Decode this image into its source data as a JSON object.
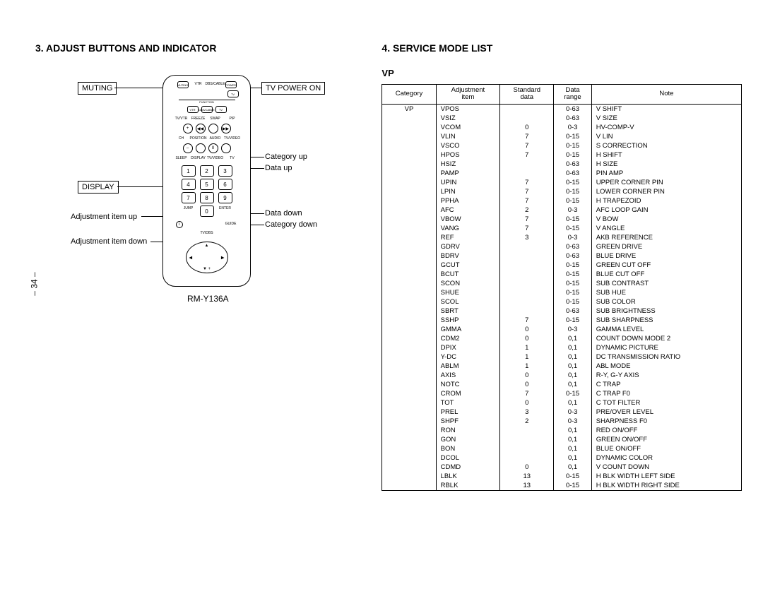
{
  "pageNumber": "– 34 –",
  "left": {
    "heading": "3. ADJUST BUTTONS AND INDICATOR",
    "remoteModel": "RM-Y136A",
    "labels": {
      "muting": "MUTING",
      "tvPowerOn": "TV POWER ON",
      "display": "DISPLAY",
      "adjItemUp": "Adjustment item up",
      "adjItemDown": "Adjustment item down",
      "categoryUp": "Category up",
      "dataUp": "Data up",
      "dataDown": "Data down",
      "categoryDown": "Category down"
    },
    "remoteButtons": {
      "topRow": [
        "MUTING",
        "VTR",
        "DBS/CABLE",
        "POWER"
      ],
      "tv": "TV",
      "function": "FUNCTION",
      "funcRow": [
        "VTR",
        "DBS/CABLE",
        "TV"
      ],
      "midRow1": [
        "TV/VTR",
        "FREEZE",
        "SWAP",
        "PIP"
      ],
      "midRow2": [
        "CH",
        "POSITION",
        "AUDIO",
        "TV/VIDEO"
      ],
      "midRow3": [
        "SLEEP",
        "DISPLAY",
        "TV/VIDEO",
        "TV"
      ],
      "midSymbols1": [
        "+",
        "◀◀",
        "",
        "▶▶"
      ],
      "midSymbols2": [
        "–",
        "◀◀",
        "II",
        ""
      ],
      "keypad": [
        [
          "1",
          "2",
          "3"
        ],
        [
          "4",
          "5",
          "6"
        ],
        [
          "7",
          "8",
          "9"
        ],
        [
          "",
          "0",
          ""
        ]
      ],
      "jump": "JUMP",
      "enter": "ENTER",
      "guide": "GUIDE",
      "tvdbs": "TV/DBS",
      "info": "i"
    }
  },
  "right": {
    "heading": "4. SERVICE MODE LIST",
    "subheading": "VP",
    "columns": [
      "Category",
      "Adjustment\nitem",
      "Standard\ndata",
      "Data\nrange",
      "Note"
    ],
    "category": "VP",
    "rows": [
      {
        "item": "VPOS",
        "std": "",
        "range": "0-63",
        "note": "V SHIFT"
      },
      {
        "item": "VSIZ",
        "std": "",
        "range": "0-63",
        "note": "V SIZE"
      },
      {
        "item": "VCOM",
        "std": "0",
        "range": "0-3",
        "note": "HV-COMP-V"
      },
      {
        "item": "VLIN",
        "std": "7",
        "range": "0-15",
        "note": "V LIN"
      },
      {
        "item": "VSCO",
        "std": "7",
        "range": "0-15",
        "note": "S CORRECTION"
      },
      {
        "item": "HPOS",
        "std": "7",
        "range": "0-15",
        "note": "H SHIFT"
      },
      {
        "item": "HSIZ",
        "std": "",
        "range": "0-63",
        "note": "H SIZE"
      },
      {
        "item": "PAMP",
        "std": "",
        "range": "0-63",
        "note": "PIN AMP"
      },
      {
        "item": "UPIN",
        "std": "7",
        "range": "0-15",
        "note": "UPPER CORNER PIN"
      },
      {
        "item": "LPIN",
        "std": "7",
        "range": "0-15",
        "note": "LOWER CORNER PIN"
      },
      {
        "item": "PPHA",
        "std": "7",
        "range": "0-15",
        "note": "H TRAPEZOID"
      },
      {
        "item": "AFC",
        "std": "2",
        "range": "0-3",
        "note": "AFC LOOP GAIN"
      },
      {
        "item": "VBOW",
        "std": "7",
        "range": "0-15",
        "note": "V BOW"
      },
      {
        "item": "VANG",
        "std": "7",
        "range": "0-15",
        "note": "V ANGLE"
      },
      {
        "item": "REF",
        "std": "3",
        "range": "0-3",
        "note": "AKB REFERENCE"
      },
      {
        "item": "GDRV",
        "std": "",
        "range": "0-63",
        "note": "GREEN DRIVE"
      },
      {
        "item": "BDRV",
        "std": "",
        "range": "0-63",
        "note": "BLUE DRIVE"
      },
      {
        "item": "GCUT",
        "std": "",
        "range": "0-15",
        "note": "GREEN CUT OFF"
      },
      {
        "item": "BCUT",
        "std": "",
        "range": "0-15",
        "note": "BLUE CUT OFF"
      },
      {
        "item": "SCON",
        "std": "",
        "range": "0-15",
        "note": "SUB CONTRAST"
      },
      {
        "item": "SHUE",
        "std": "",
        "range": "0-15",
        "note": "SUB HUE"
      },
      {
        "item": "SCOL",
        "std": "",
        "range": "0-15",
        "note": "SUB COLOR"
      },
      {
        "item": "SBRT",
        "std": "",
        "range": "0-63",
        "note": "SUB BRIGHTNESS"
      },
      {
        "item": "SSHP",
        "std": "7",
        "range": "0-15",
        "note": "SUB SHARPNESS"
      },
      {
        "item": "GMMA",
        "std": "0",
        "range": "0-3",
        "note": "GAMMA LEVEL"
      },
      {
        "item": "CDM2",
        "std": "0",
        "range": "0,1",
        "note": "COUNT DOWN MODE 2"
      },
      {
        "item": "DPIX",
        "std": "1",
        "range": "0,1",
        "note": "DYNAMIC PICTURE"
      },
      {
        "item": "Y-DC",
        "std": "1",
        "range": "0,1",
        "note": "DC TRANSMISSION RATIO"
      },
      {
        "item": "ABLM",
        "std": "1",
        "range": "0,1",
        "note": "ABL MODE"
      },
      {
        "item": "AXIS",
        "std": "0",
        "range": "0,1",
        "note": "R-Y, G-Y AXIS"
      },
      {
        "item": "NOTC",
        "std": "0",
        "range": "0,1",
        "note": "C TRAP"
      },
      {
        "item": "CROM",
        "std": "7",
        "range": "0-15",
        "note": "C TRAP F0"
      },
      {
        "item": "TOT",
        "std": "0",
        "range": "0,1",
        "note": "C TOT FILTER"
      },
      {
        "item": "PREL",
        "std": "3",
        "range": "0-3",
        "note": "PRE/OVER LEVEL"
      },
      {
        "item": "SHPF",
        "std": "2",
        "range": "0-3",
        "note": "SHARPNESS F0"
      },
      {
        "item": "RON",
        "std": "",
        "range": "0,1",
        "note": "RED ON/OFF"
      },
      {
        "item": "GON",
        "std": "",
        "range": "0,1",
        "note": "GREEN ON/OFF"
      },
      {
        "item": "BON",
        "std": "",
        "range": "0,1",
        "note": "BLUE ON/OFF"
      },
      {
        "item": "DCOL",
        "std": "",
        "range": "0,1",
        "note": "DYNAMIC COLOR"
      },
      {
        "item": "CDMD",
        "std": "0",
        "range": "0,1",
        "note": "V COUNT DOWN"
      },
      {
        "item": "LBLK",
        "std": "13",
        "range": "0-15",
        "note": "H BLK WIDTH LEFT SIDE"
      },
      {
        "item": "RBLK",
        "std": "13",
        "range": "0-15",
        "note": "H BLK WIDTH RIGHT SIDE"
      }
    ]
  }
}
